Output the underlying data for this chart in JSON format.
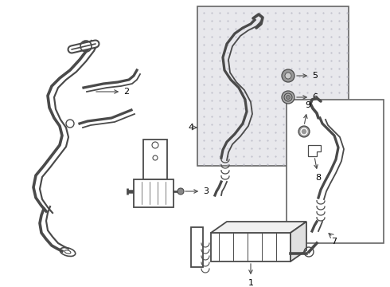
{
  "background_color": "#ffffff",
  "line_color": "#4a4a4a",
  "text_color": "#000000",
  "fig_w": 4.9,
  "fig_h": 3.6,
  "dpi": 100
}
